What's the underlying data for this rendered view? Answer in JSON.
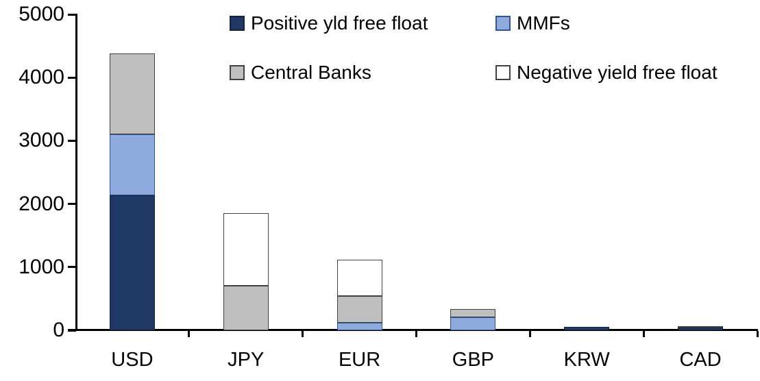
{
  "chart_data": {
    "type": "bar",
    "stacked": true,
    "title": "",
    "xlabel": "",
    "ylabel": "",
    "categories": [
      "USD",
      "JPY",
      "EUR",
      "GBP",
      "KRW",
      "CAD"
    ],
    "series": [
      {
        "name": "Positive yld free float",
        "color": "#1f3864",
        "border_color": "#16233f",
        "values": [
          2140,
          0,
          0,
          0,
          50,
          40
        ]
      },
      {
        "name": "MMFs",
        "color": "#8faadc",
        "border_color": "#2e5597",
        "values": [
          960,
          0,
          120,
          210,
          0,
          0
        ]
      },
      {
        "name": "Central Banks",
        "color": "#bfbfbf",
        "border_color": "#404040",
        "values": [
          1280,
          700,
          425,
          125,
          0,
          20
        ]
      },
      {
        "name": "Negative yield free float",
        "color": "#ffffff",
        "border_color": "#404040",
        "values": [
          0,
          1150,
          575,
          0,
          0,
          0
        ]
      }
    ],
    "ylim": [
      0,
      5000
    ],
    "yticks": [
      0,
      1000,
      2000,
      3000,
      4000,
      5000
    ],
    "grid": false,
    "legend_position": "top",
    "axis_color": "#000000",
    "background_color": "#ffffff"
  }
}
